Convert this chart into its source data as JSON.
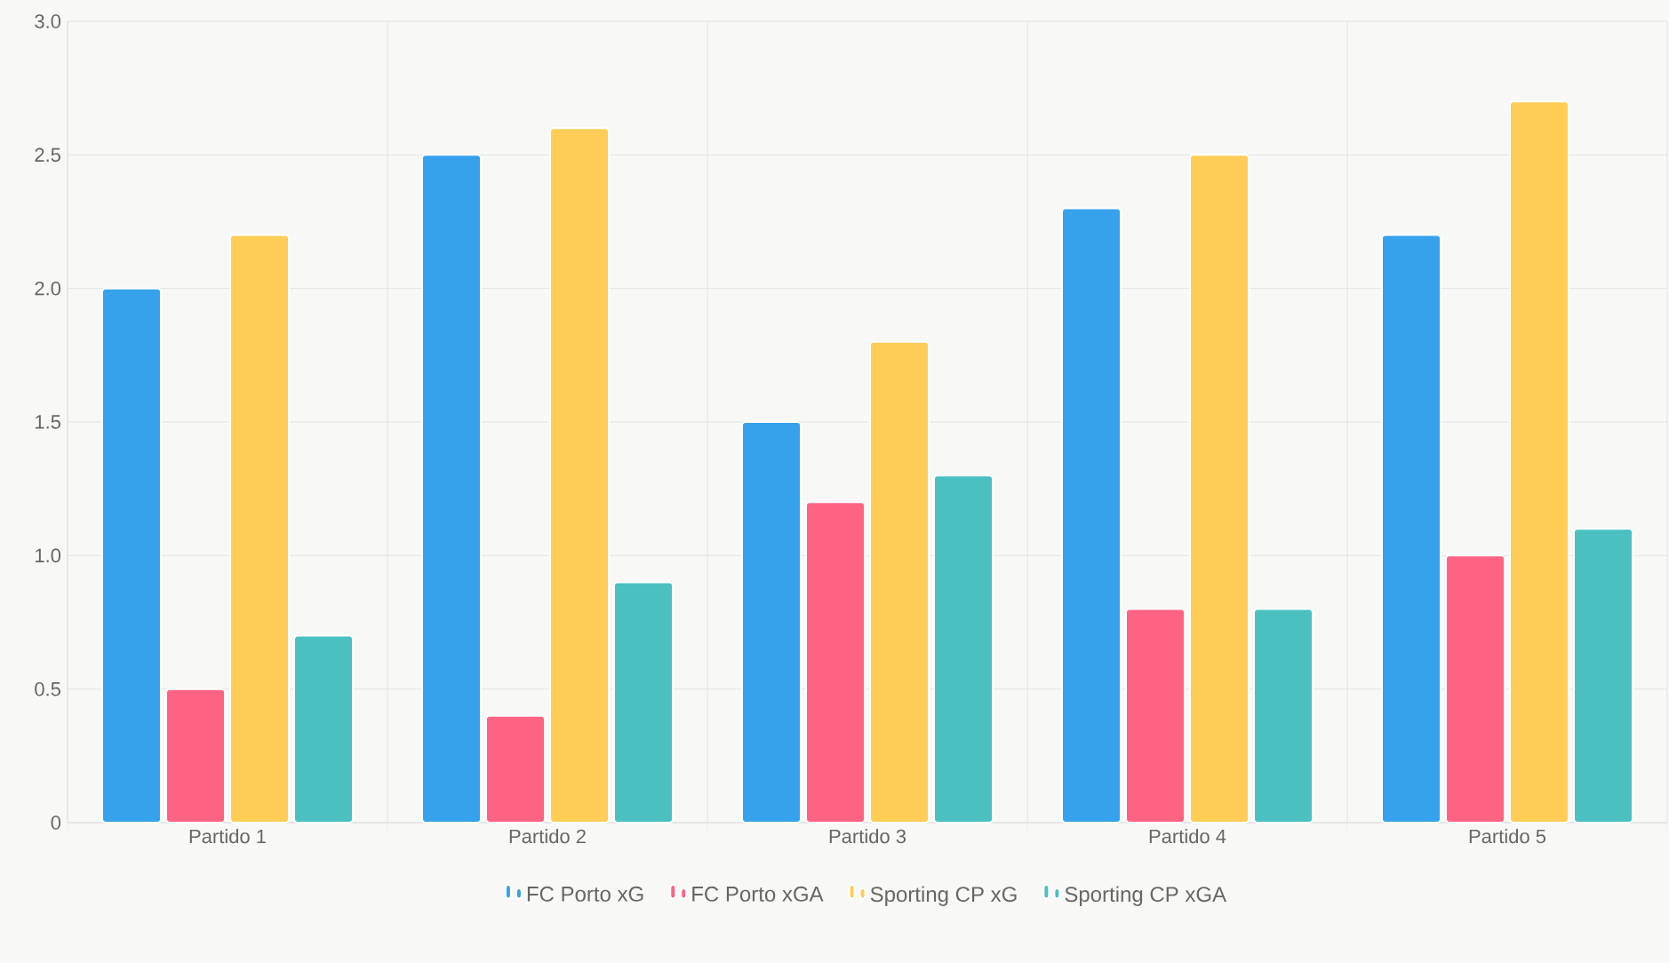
{
  "chart_data": {
    "type": "bar",
    "categories": [
      "Partido 1",
      "Partido 2",
      "Partido 3",
      "Partido 4",
      "Partido 5"
    ],
    "series": [
      {
        "name": "FC Porto xG",
        "color": "#36a2eb",
        "values": [
          2.0,
          2.5,
          1.5,
          2.3,
          2.2
        ]
      },
      {
        "name": "FC Porto xGA",
        "color": "#ff6384",
        "values": [
          0.5,
          0.4,
          1.2,
          0.8,
          1.0
        ]
      },
      {
        "name": "Sporting CP xG",
        "color": "#ffcd56",
        "values": [
          2.2,
          2.6,
          1.8,
          2.5,
          2.7
        ]
      },
      {
        "name": "Sporting CP xGA",
        "color": "#4bc0c0",
        "values": [
          0.7,
          0.9,
          1.3,
          0.8,
          1.1
        ]
      }
    ],
    "ylim": [
      0,
      3
    ],
    "yticks": [
      0,
      0.5,
      {
        "value": 1,
        "label": "1.0"
      },
      1.5,
      {
        "value": 2,
        "label": "2.0"
      },
      2.5,
      {
        "value": 3,
        "label": "3.0"
      }
    ],
    "grid": true,
    "legend": "bottom"
  }
}
